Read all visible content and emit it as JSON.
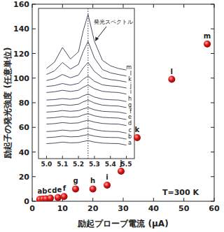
{
  "chart_data": [
    {
      "type": "scatter",
      "x_label": "励起プローブ電流 (μA)",
      "y_label": "励起子の発光強度 (任意単位)",
      "x": [
        2.5,
        3.5,
        4.5,
        6,
        8.5,
        10.5,
        14.3,
        20,
        24.7,
        29.3,
        34.6,
        46,
        57.7
      ],
      "values": [
        1.5,
        1.8,
        2,
        2.5,
        3,
        3.8,
        10,
        10,
        13,
        24.4,
        51.6,
        99,
        127.7
      ],
      "labels": [
        "a",
        "b",
        "c",
        "d",
        "e",
        "f",
        "g",
        "h",
        "i",
        "j",
        "k",
        "l",
        "m"
      ],
      "color": "#e01818",
      "marker": "circle",
      "xlim": [
        0,
        60
      ],
      "xticks": [
        0,
        10,
        20,
        30,
        40,
        50,
        60
      ],
      "ylim": [
        0,
        160
      ],
      "yticks": [
        0,
        20,
        40,
        60,
        80,
        100,
        120,
        140,
        160
      ],
      "grid": false,
      "annotations": [
        "T=300 K"
      ]
    },
    {
      "type": "line",
      "x": [
        5.0,
        5.05,
        5.1,
        5.15,
        5.2,
        5.23,
        5.26,
        5.3,
        5.35,
        5.4,
        5.45,
        5.5
      ],
      "series": [
        {
          "name": "a",
          "values": [
            10,
            10.3,
            11,
            10.5,
            10.7,
            11.4,
            12,
            11,
            10.3,
            10.1,
            10,
            9
          ]
        },
        {
          "name": "b",
          "values": [
            14,
            14.3,
            15,
            14.5,
            14.7,
            15.4,
            16,
            15,
            14.3,
            14.1,
            14,
            13
          ]
        },
        {
          "name": "c",
          "values": [
            18,
            18.3,
            19,
            18.5,
            18.8,
            19.8,
            20.5,
            19.3,
            18.4,
            18.1,
            18,
            17
          ]
        },
        {
          "name": "d",
          "values": [
            23,
            23.3,
            24,
            23.5,
            23.8,
            24.8,
            25.5,
            24.3,
            23.4,
            23.1,
            23,
            22
          ]
        },
        {
          "name": "e",
          "values": [
            27,
            27.3,
            28,
            27.5,
            27.9,
            29.1,
            30,
            28.5,
            27.5,
            27.2,
            27,
            26
          ]
        },
        {
          "name": "f",
          "values": [
            31,
            31.3,
            32,
            31.5,
            31.9,
            33.1,
            34,
            32.5,
            31.5,
            31.2,
            31,
            30
          ]
        },
        {
          "name": "g",
          "values": [
            35,
            35.3,
            36,
            35.5,
            36.2,
            37.8,
            39,
            37,
            35.6,
            35.2,
            35,
            34
          ]
        },
        {
          "name": "h",
          "values": [
            39,
            39.3,
            40,
            39.5,
            40.2,
            41.8,
            43,
            41,
            39.6,
            39.2,
            39,
            38
          ]
        },
        {
          "name": "i",
          "values": [
            44,
            44.5,
            45.5,
            44.7,
            45.5,
            47.5,
            49,
            46.5,
            44.8,
            44.3,
            44,
            43
          ]
        },
        {
          "name": "j",
          "values": [
            48,
            48.6,
            50,
            48.9,
            50.1,
            52.9,
            55,
            51.5,
            49.1,
            48.4,
            48,
            47
          ]
        },
        {
          "name": "k",
          "values": [
            52,
            53.2,
            56,
            53.8,
            55.6,
            60.4,
            64,
            58,
            53.8,
            52.6,
            52,
            51
          ]
        },
        {
          "name": "l",
          "values": [
            56,
            58.4,
            64,
            59.6,
            62.7,
            71.4,
            78,
            67,
            59.3,
            57.1,
            56,
            55
          ]
        },
        {
          "name": "m",
          "values": [
            60,
            64.2,
            74,
            66.3,
            71.1,
            85.2,
            96,
            78,
            65.4,
            61.8,
            60,
            59
          ]
        }
      ],
      "color": "#4a5068",
      "xlim": [
        4.95,
        5.55
      ],
      "xticks": [
        {
          "value": 5,
          "label": "5.0"
        },
        5.1,
        5.2,
        5.3,
        5.4,
        5.5
      ],
      "ylim": [
        0,
        100
      ],
      "tick_labels": "x",
      "line_style": "solid",
      "peak_x": 5.26,
      "annotations": [
        "発光スペクトル"
      ]
    }
  ]
}
